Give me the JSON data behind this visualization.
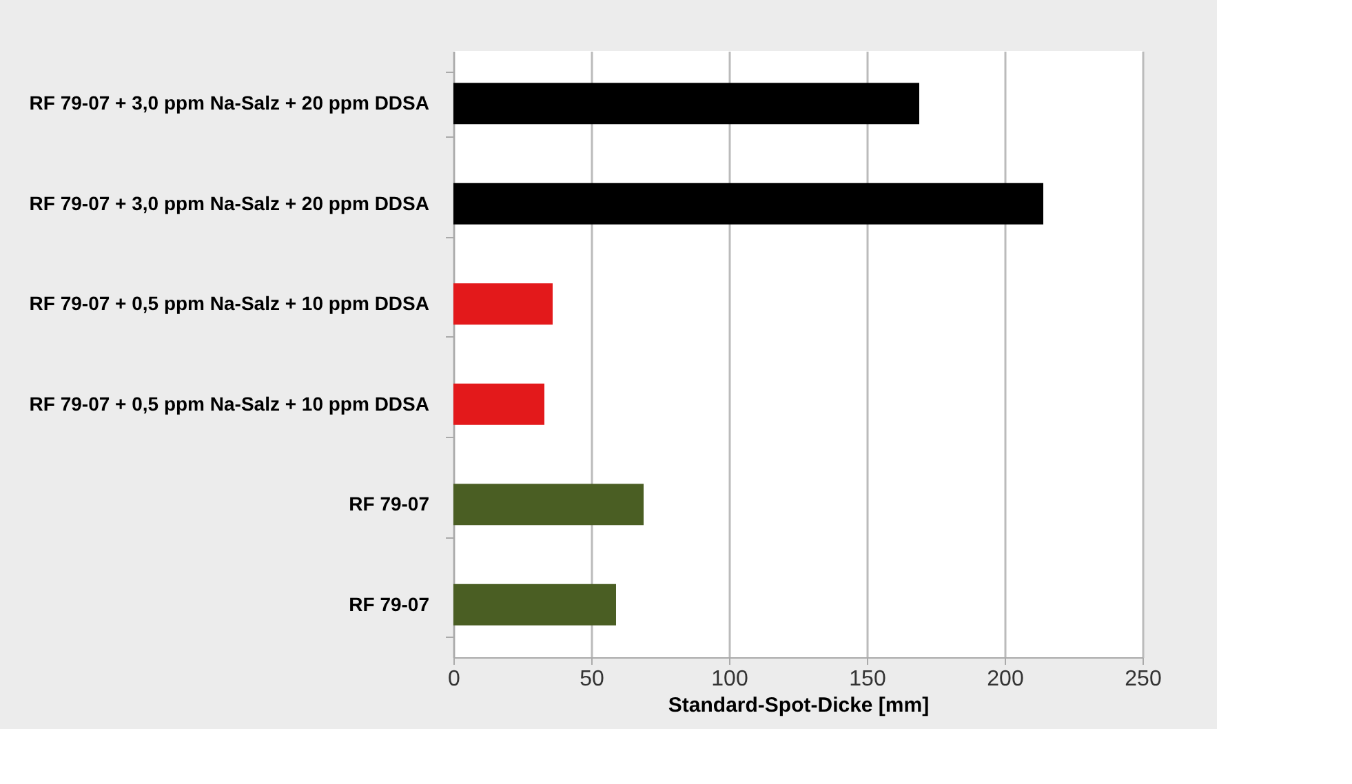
{
  "chart_data": {
    "type": "bar",
    "orientation": "horizontal",
    "xlabel": "Standard-Spot-Dicke [mm]",
    "categories": [
      "RF 79-07 + 3,0 ppm Na-Salz + 20 ppm DDSA",
      "RF 79-07 + 3,0 ppm Na-Salz + 20 ppm DDSA",
      "RF 79-07 + 0,5 ppm Na-Salz + 10 ppm DDSA",
      "RF 79-07 + 0,5 ppm Na-Salz + 10 ppm DDSA",
      "RF 79-07",
      "RF 79-07"
    ],
    "values": [
      169,
      214,
      36,
      33,
      69,
      59
    ],
    "colors": [
      "#000000",
      "#000000",
      "#e3191b",
      "#e3191b",
      "#4a5e23",
      "#4a5e23"
    ],
    "xlim": [
      0,
      250
    ],
    "xticks": [
      0,
      50,
      100,
      150,
      200,
      250
    ],
    "grid": "x"
  }
}
